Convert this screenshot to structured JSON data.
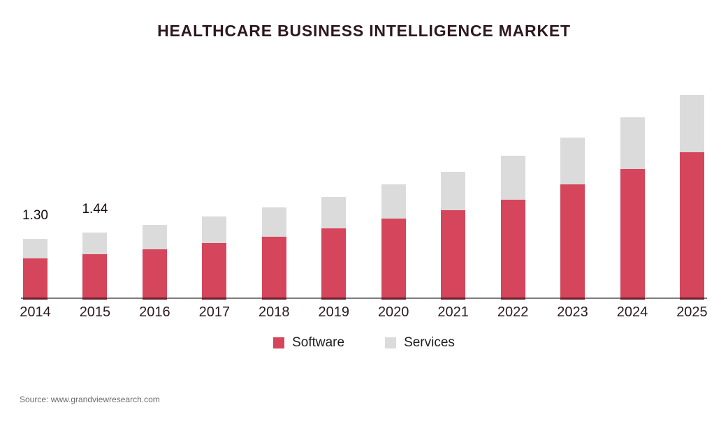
{
  "title": "HEALTHCARE BUSINESS INTELLIGENCE MARKET",
  "source": "Source: www.grandviewresearch.com",
  "chart_data": {
    "type": "bar",
    "stacked": true,
    "title": "HEALTHCARE BUSINESS INTELLIGENCE MARKET",
    "categories": [
      "2014",
      "2015",
      "2016",
      "2017",
      "2018",
      "2019",
      "2020",
      "2021",
      "2022",
      "2023",
      "2024",
      "2025"
    ],
    "series": [
      {
        "name": "Software",
        "color": "#D5455B",
        "values": [
          0.86,
          0.96,
          1.07,
          1.21,
          1.35,
          1.53,
          1.75,
          1.93,
          2.17,
          2.51,
          2.85,
          3.22
        ]
      },
      {
        "name": "Services",
        "color": "#DBDBDB",
        "values": [
          0.44,
          0.48,
          0.54,
          0.59,
          0.65,
          0.7,
          0.76,
          0.85,
          0.98,
          1.04,
          1.15,
          1.27
        ]
      }
    ],
    "annotations": [
      {
        "category": "2014",
        "text": "1.30"
      },
      {
        "category": "2015",
        "text": "1.44"
      }
    ],
    "xlabel": "",
    "ylabel": "",
    "ylim": [
      0,
      4.6
    ],
    "grid": false,
    "legend_position": "bottom",
    "axis_line_color": "#7D7D7D",
    "colors": {
      "software": "#D5455B",
      "services": "#DBDBDB",
      "title_text": "#2D181D",
      "axis_text": "#2B1A1E"
    }
  }
}
